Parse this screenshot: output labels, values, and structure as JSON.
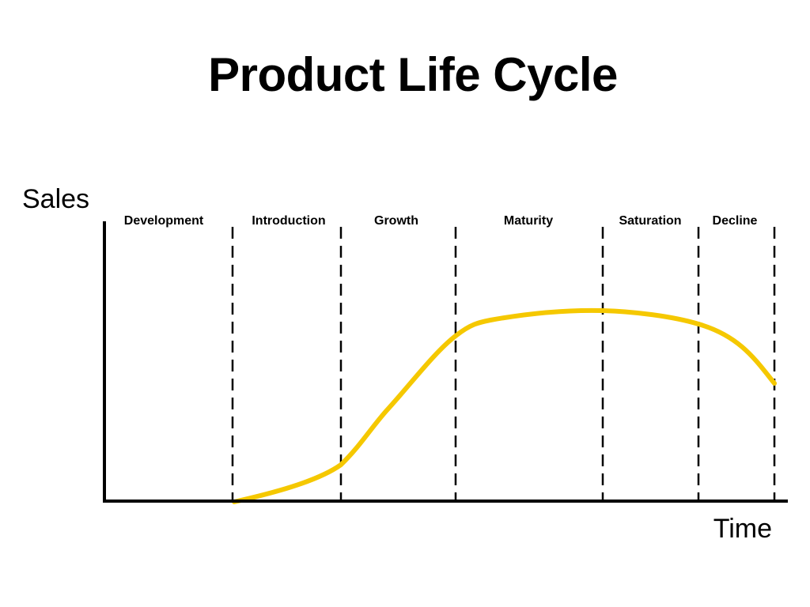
{
  "title": "Product Life Cycle",
  "axes": {
    "y_label": "Sales",
    "x_label": "Time"
  },
  "phases": [
    {
      "label": "Development"
    },
    {
      "label": "Introduction"
    },
    {
      "label": "Growth"
    },
    {
      "label": "Maturity"
    },
    {
      "label": "Saturation"
    },
    {
      "label": "Decline"
    }
  ],
  "colors": {
    "curve": "#F5C800",
    "axes": "#000000",
    "dividers": "#000000"
  }
}
